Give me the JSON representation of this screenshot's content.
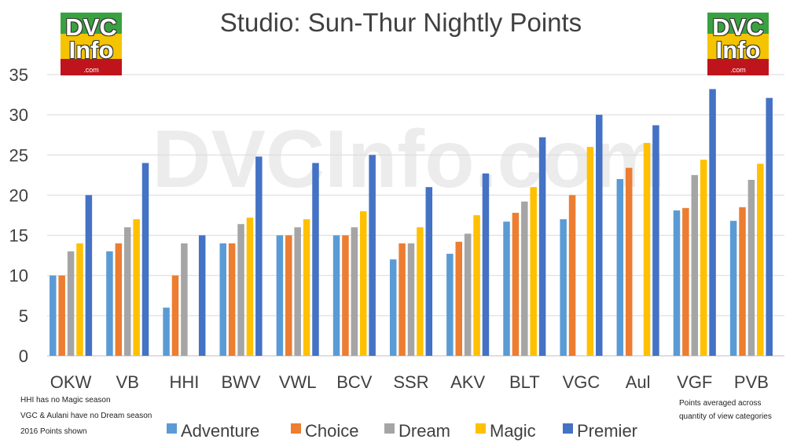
{
  "logo": {
    "line1": "DVC",
    "line2": "Info",
    "line3": ".com"
  },
  "watermark": "DVCInfo.com",
  "notes_left": [
    "HHI has no Magic season",
    "VGC & Aulani have no Dream season",
    "2016 Points shown"
  ],
  "notes_right": [
    "Points averaged across",
    "quantity of view categories"
  ],
  "colors": {
    "Adventure": "#5b9bd5",
    "Choice": "#ed7d31",
    "Dream": "#a5a5a5",
    "Magic": "#ffc000",
    "Premier": "#4472c4"
  },
  "chart_data": {
    "type": "bar",
    "title": "Studio: Sun-Thur Nightly Points",
    "xlabel": "",
    "ylabel": "",
    "ylim": [
      0,
      35
    ],
    "yticks": [
      0,
      5,
      10,
      15,
      20,
      25,
      30,
      35
    ],
    "grid": true,
    "legend": "bottom",
    "categories": [
      "OKW",
      "VB",
      "HHI",
      "BWV",
      "VWL",
      "BCV",
      "SSR",
      "AKV",
      "BLT",
      "VGC",
      "Aul",
      "VGF",
      "PVB"
    ],
    "series": [
      {
        "name": "Adventure",
        "values": [
          10,
          13,
          6,
          14,
          15,
          15,
          12,
          12.7,
          16.7,
          17,
          22,
          18.1,
          16.8
        ]
      },
      {
        "name": "Choice",
        "values": [
          10,
          14,
          10,
          14,
          15,
          15,
          14,
          14.2,
          17.8,
          20,
          23.4,
          18.4,
          18.5
        ]
      },
      {
        "name": "Dream",
        "values": [
          13,
          16,
          14,
          16.4,
          16,
          16,
          14,
          15.2,
          19.2,
          null,
          null,
          22.5,
          21.9
        ]
      },
      {
        "name": "Magic",
        "values": [
          14,
          17,
          null,
          17.2,
          17,
          18,
          16,
          17.5,
          21,
          26,
          26.5,
          24.4,
          23.9
        ]
      },
      {
        "name": "Premier",
        "values": [
          20,
          24,
          15,
          24.8,
          24,
          25,
          21,
          22.7,
          27.2,
          30,
          28.7,
          33.2,
          32.1
        ]
      }
    ]
  }
}
